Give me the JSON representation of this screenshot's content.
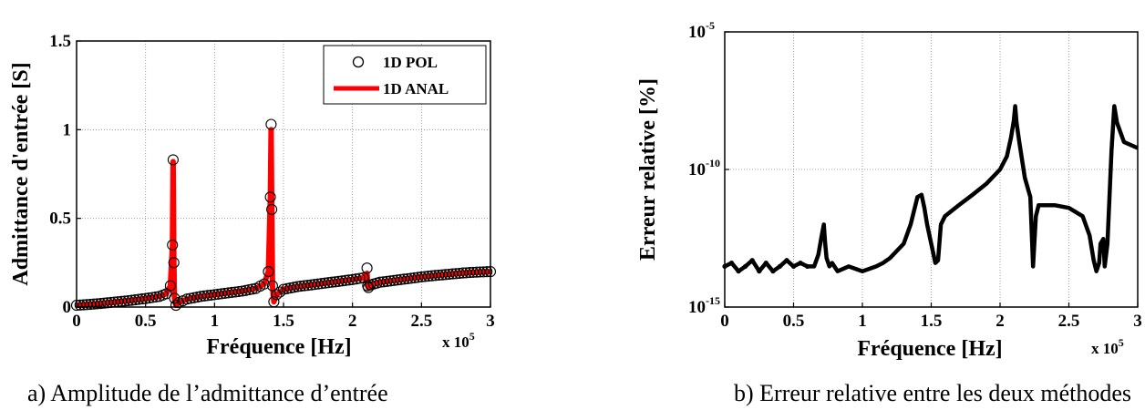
{
  "chart_data": [
    {
      "type": "line",
      "caption": "a)   Amplitude de l’admittance d’entrée",
      "xlabel": "Fréquence [Hz]",
      "ylabel": "Admittance d'entrée [S]",
      "x_multiplier": {
        "base": "x 10",
        "exponent": "5"
      },
      "xlim": [
        0,
        300000
      ],
      "ylim": [
        0,
        1.5
      ],
      "xticks": [
        0,
        50000,
        100000,
        150000,
        200000,
        250000,
        300000
      ],
      "xtick_labels": [
        "0",
        "0.5",
        "1",
        "1.5",
        "2",
        "2.5",
        "3"
      ],
      "yticks": [
        0,
        0.5,
        1,
        1.5
      ],
      "ytick_labels": [
        "0",
        "0.5",
        "1",
        "1.5"
      ],
      "grid": true,
      "legend_position": "top-right",
      "series": [
        {
          "name": "1D POL",
          "style": "circle-markers",
          "color": "#000000",
          "x": [
            0,
            10000,
            20000,
            30000,
            40000,
            50000,
            60000,
            65000,
            68000,
            69500,
            70000,
            70500,
            71000,
            72000,
            74000,
            80000,
            90000,
            100000,
            110000,
            120000,
            130000,
            136000,
            139000,
            140500,
            141000,
            141500,
            142000,
            143000,
            145000,
            150000,
            160000,
            170000,
            180000,
            190000,
            200000,
            208000,
            210500,
            211000,
            211500,
            213000,
            220000,
            230000,
            240000,
            250000,
            260000,
            270000,
            280000,
            290000,
            300000
          ],
          "y": [
            0.01,
            0.015,
            0.022,
            0.03,
            0.038,
            0.048,
            0.06,
            0.075,
            0.12,
            0.35,
            0.83,
            0.25,
            0.05,
            0.01,
            0.025,
            0.045,
            0.06,
            0.07,
            0.08,
            0.09,
            0.105,
            0.13,
            0.2,
            0.62,
            1.03,
            0.55,
            0.12,
            0.03,
            0.07,
            0.1,
            0.115,
            0.125,
            0.135,
            0.145,
            0.155,
            0.165,
            0.22,
            0.12,
            0.11,
            0.125,
            0.14,
            0.15,
            0.16,
            0.17,
            0.178,
            0.185,
            0.192,
            0.197,
            0.2
          ]
        },
        {
          "name": "1D ANAL",
          "style": "line",
          "color": "#ff0000",
          "x": [
            0,
            10000,
            20000,
            30000,
            40000,
            50000,
            60000,
            65000,
            68000,
            69500,
            70000,
            70500,
            71000,
            72000,
            74000,
            80000,
            90000,
            100000,
            110000,
            120000,
            130000,
            136000,
            139000,
            140500,
            141000,
            141500,
            142000,
            143000,
            145000,
            150000,
            160000,
            170000,
            180000,
            190000,
            200000,
            208000,
            210500,
            211000,
            211500,
            213000,
            220000,
            230000,
            240000,
            250000,
            260000,
            270000,
            280000,
            290000,
            300000
          ],
          "y": [
            0.01,
            0.015,
            0.022,
            0.03,
            0.038,
            0.048,
            0.06,
            0.075,
            0.12,
            0.35,
            0.82,
            0.25,
            0.05,
            0.01,
            0.025,
            0.045,
            0.06,
            0.07,
            0.08,
            0.09,
            0.105,
            0.13,
            0.2,
            0.62,
            1.0,
            0.55,
            0.12,
            0.03,
            0.07,
            0.1,
            0.115,
            0.125,
            0.135,
            0.145,
            0.155,
            0.165,
            0.19,
            0.12,
            0.11,
            0.125,
            0.14,
            0.15,
            0.16,
            0.17,
            0.178,
            0.185,
            0.192,
            0.197,
            0.2
          ]
        }
      ]
    },
    {
      "type": "line",
      "caption": "b) Erreur relative entre les deux méthodes",
      "xlabel": "Fréquence [Hz]",
      "ylabel": "Erreur relative [%]",
      "x_multiplier": {
        "base": "x 10",
        "exponent": "5"
      },
      "yscale": "log",
      "xlim": [
        0,
        300000
      ],
      "ylim": [
        1e-15,
        1e-05
      ],
      "xticks": [
        0,
        50000,
        100000,
        150000,
        200000,
        250000,
        300000
      ],
      "xtick_labels": [
        "0",
        "0.5",
        "1",
        "1.5",
        "2",
        "2.5",
        "3"
      ],
      "yticks": [
        1e-15,
        1e-10,
        1e-05
      ],
      "ytick_labels": [
        {
          "base": "10",
          "exp": "-15"
        },
        {
          "base": "10",
          "exp": "-10"
        },
        {
          "base": "10",
          "exp": "-5"
        }
      ],
      "grid": true,
      "series": [
        {
          "color": "#000000",
          "style": "thick-line",
          "x": [
            0,
            5000,
            10000,
            15000,
            20000,
            25000,
            30000,
            35000,
            40000,
            45000,
            50000,
            55000,
            60000,
            65000,
            68000,
            70000,
            72000,
            73000,
            74000,
            76000,
            78000,
            82000,
            90000,
            100000,
            110000,
            115000,
            120000,
            130000,
            135000,
            140000,
            143000,
            145000,
            147000,
            150000,
            153000,
            155000,
            157000,
            160000,
            170000,
            180000,
            190000,
            200000,
            205000,
            208000,
            210000,
            211000,
            212000,
            214000,
            218000,
            222000,
            224000,
            226000,
            228000,
            232000,
            240000,
            250000,
            260000,
            265000,
            268000,
            270000,
            272000,
            273000,
            275000,
            276000,
            278000,
            281000,
            283000,
            285000,
            290000,
            300000
          ],
          "y": [
            3e-14,
            4e-14,
            2e-14,
            3e-14,
            5e-14,
            2e-14,
            4e-14,
            2e-14,
            3e-14,
            5e-14,
            3e-14,
            4e-14,
            3e-14,
            3e-14,
            8e-14,
            3e-13,
            1e-12,
            2e-13,
            6e-14,
            3e-14,
            4e-14,
            2e-14,
            3e-14,
            2e-14,
            3e-14,
            4e-14,
            6e-14,
            2e-13,
            1e-12,
            1e-11,
            1.2e-11,
            4e-12,
            1e-12,
            2e-13,
            4e-14,
            5e-14,
            1e-12,
            2e-12,
            5e-12,
            1.2e-11,
            3e-11,
            1e-10,
            3e-10,
            1.5e-09,
            6e-09,
            2e-08,
            5e-09,
            1e-09,
            5e-11,
            1e-11,
            3e-14,
            2e-12,
            5e-12,
            5e-12,
            5e-12,
            4e-12,
            2e-12,
            4e-13,
            5e-14,
            2e-14,
            4e-14,
            2e-13,
            3e-13,
            3e-14,
            2e-13,
            5e-10,
            2e-08,
            5e-09,
            1e-09,
            6e-10
          ]
        }
      ]
    }
  ]
}
